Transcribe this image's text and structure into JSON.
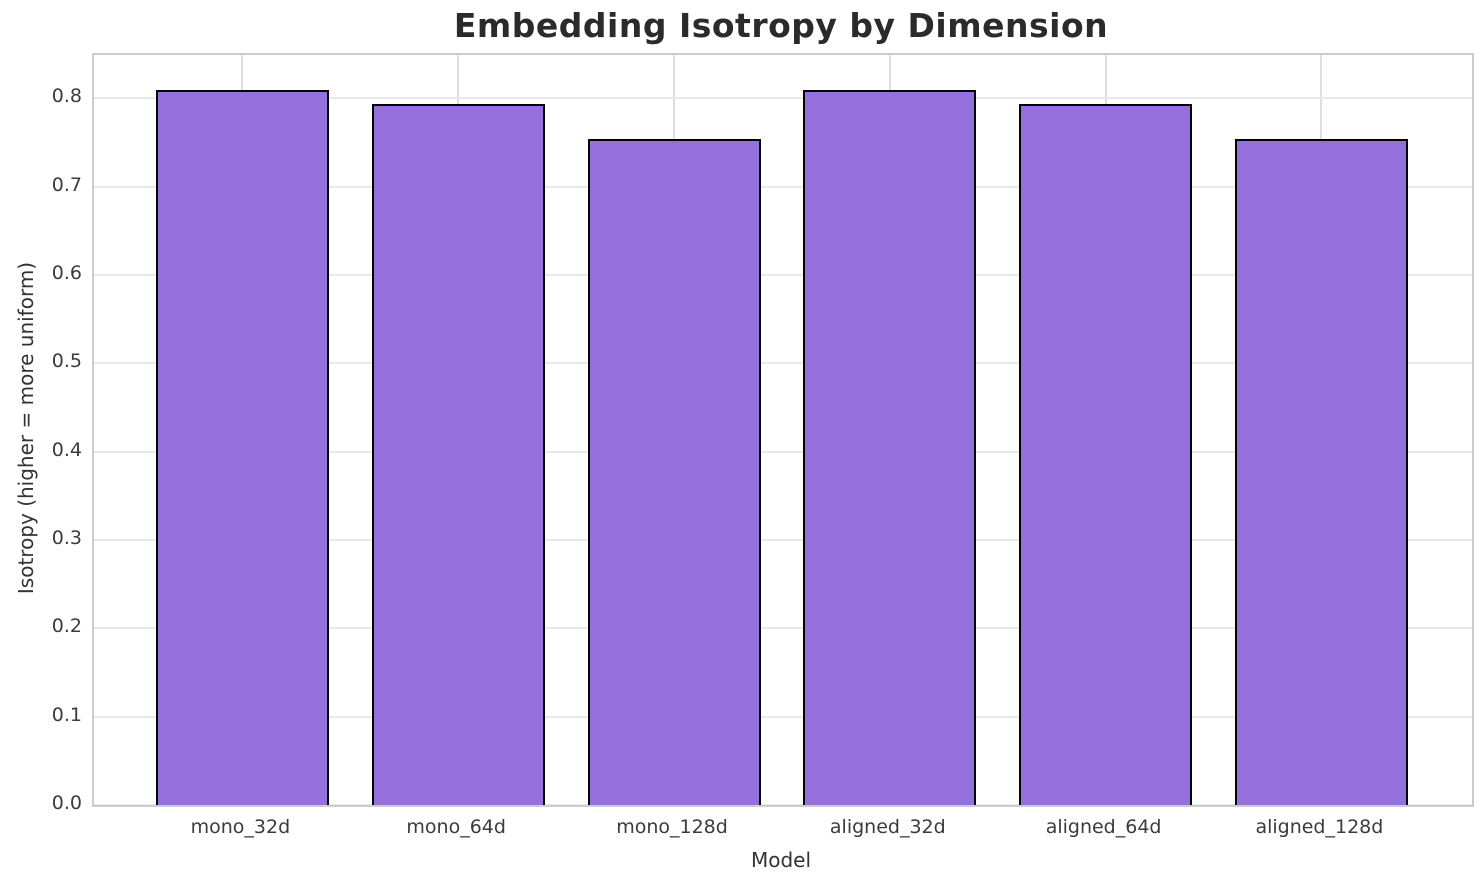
{
  "chart_data": {
    "type": "bar",
    "title": "Embedding Isotropy by Dimension",
    "xlabel": "Model",
    "ylabel": "Isotropy (higher = more uniform)",
    "categories": [
      "mono_32d",
      "mono_64d",
      "mono_128d",
      "aligned_32d",
      "aligned_64d",
      "aligned_128d"
    ],
    "values": [
      0.809,
      0.793,
      0.754,
      0.809,
      0.793,
      0.754
    ],
    "ylim": [
      0.0,
      0.849
    ],
    "ytick_labels": [
      "0.0",
      "0.1",
      "0.2",
      "0.3",
      "0.4",
      "0.5",
      "0.6",
      "0.7",
      "0.8"
    ],
    "grid": true,
    "legend": "none",
    "colors": {
      "bar_fill": "#9370db",
      "bar_edge": "#000000",
      "h_grid": "#e9e9e9",
      "v_grid": "#dedede",
      "spine": "#cccccc",
      "title_text": "#2b2b2b",
      "tick_text": "#3b3b3b",
      "background": "#ffffff"
    }
  }
}
